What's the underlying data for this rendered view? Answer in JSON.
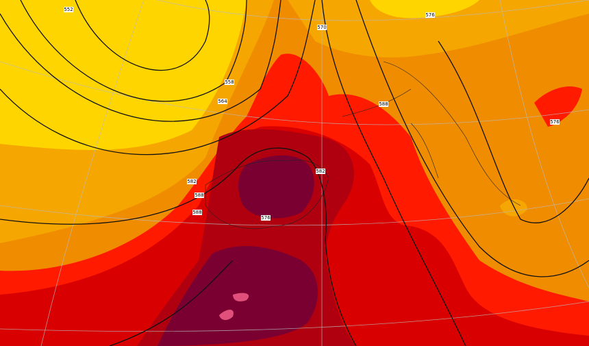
{
  "map": {
    "contour_labels": [
      "552",
      "558",
      "564",
      "570",
      "576",
      "582",
      "588",
      "588",
      "582",
      "576",
      "588",
      "576"
    ]
  }
}
